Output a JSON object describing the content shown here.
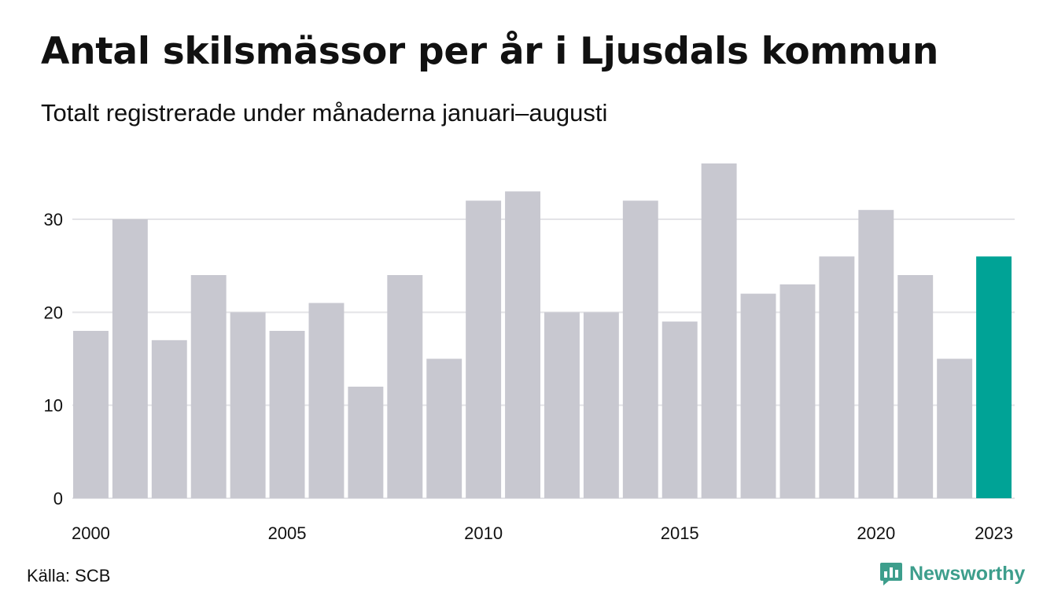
{
  "chart_data": {
    "type": "bar",
    "title": "Antal skilsmässor per år i Ljusdals kommun",
    "subtitle": "Totalt registrerade under månaderna januari–augusti",
    "categories": [
      "2000",
      "2001",
      "2002",
      "2003",
      "2004",
      "2005",
      "2006",
      "2007",
      "2008",
      "2009",
      "2010",
      "2011",
      "2012",
      "2013",
      "2014",
      "2015",
      "2016",
      "2017",
      "2018",
      "2019",
      "2020",
      "2021",
      "2022",
      "2023"
    ],
    "values": [
      18,
      30,
      17,
      24,
      20,
      18,
      21,
      12,
      24,
      15,
      32,
      33,
      20,
      20,
      32,
      19,
      36,
      22,
      23,
      26,
      31,
      24,
      15,
      26
    ],
    "x_tick_labels": [
      "2000",
      "2005",
      "2010",
      "2015",
      "2020",
      "2023"
    ],
    "y_ticks": [
      0,
      10,
      20,
      30
    ],
    "ylim": [
      0,
      36
    ],
    "xlabel": "",
    "ylabel": "",
    "grid": true,
    "highlight_category": "2023",
    "colors": {
      "bar": "#c8c8d0",
      "highlight": "#00a396",
      "grid": "#e3e3e7"
    }
  },
  "footer": {
    "source": "Källa: SCB",
    "brand": "Newsworthy"
  },
  "brand_color": "#3d9e8c",
  "brand_icon": "chat-bubble-bar-chart-icon"
}
